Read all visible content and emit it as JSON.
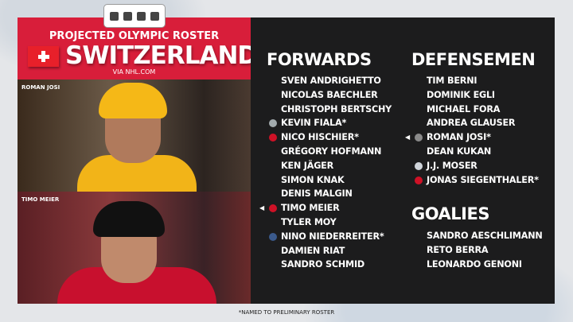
{
  "header": {
    "subtitle": "PROJECTED OLYMPIC ROSTER",
    "country": "SWITZERLAND",
    "source": "VIA NHL.COM",
    "flag": "swiss-flag-icon"
  },
  "photos": [
    {
      "caption": "ROMAN JOSI"
    },
    {
      "caption": "TIMO MEIER"
    }
  ],
  "forwards": {
    "title": "FORWARDS",
    "players": [
      {
        "name": "SVEN ANDRIGHETTO"
      },
      {
        "name": "NICOLAS BAECHLER"
      },
      {
        "name": "CHRISTOPH BERTSCHY"
      },
      {
        "name": "KEVIN FIALA*",
        "team_icon": "kings-logo-icon",
        "color": "#a2aaad"
      },
      {
        "name": "NICO HISCHIER*",
        "team_icon": "devils-logo-icon",
        "color": "#ce1126"
      },
      {
        "name": "GRÉGORY HOFMANN"
      },
      {
        "name": "KEN JÄGER"
      },
      {
        "name": "SIMON KNAK"
      },
      {
        "name": "DENIS MALGIN"
      },
      {
        "name": "TIMO MEIER",
        "team_icon": "devils-logo-icon",
        "color": "#ce1126",
        "pointer": true
      },
      {
        "name": "TYLER MOY"
      },
      {
        "name": "NINO NIEDERREITER*",
        "team_icon": "jets-logo-icon",
        "color": "#3b5a8c"
      },
      {
        "name": "DAMIEN RIAT"
      },
      {
        "name": "SANDRO SCHMID"
      }
    ]
  },
  "defensemen": {
    "title": "DEFENSEMEN",
    "players": [
      {
        "name": "TIM BERNI"
      },
      {
        "name": "DOMINIK EGLI"
      },
      {
        "name": "MICHAEL FORA"
      },
      {
        "name": "ANDREA GLAUSER"
      },
      {
        "name": "ROMAN JOSI*",
        "team_icon": "predators-logo-icon",
        "color": "#8a8a8a",
        "pointer": true
      },
      {
        "name": "DEAN KUKAN"
      },
      {
        "name": "J.J. MOSER",
        "team_icon": "lightning-logo-icon",
        "color": "#cfd4da"
      },
      {
        "name": "JONAS SIEGENTHALER*",
        "team_icon": "devils-logo-icon",
        "color": "#ce1126"
      }
    ]
  },
  "goalies": {
    "title": "GOALIES",
    "players": [
      {
        "name": "SANDRO AESCHLIMANN"
      },
      {
        "name": "RETO BERRA"
      },
      {
        "name": "LEONARDO GENONI"
      }
    ]
  },
  "footnote": "*NAMED TO PRELIMINARY ROSTER",
  "colors": {
    "header_red": "#d81e3a",
    "panel": "#1c1c1d"
  }
}
